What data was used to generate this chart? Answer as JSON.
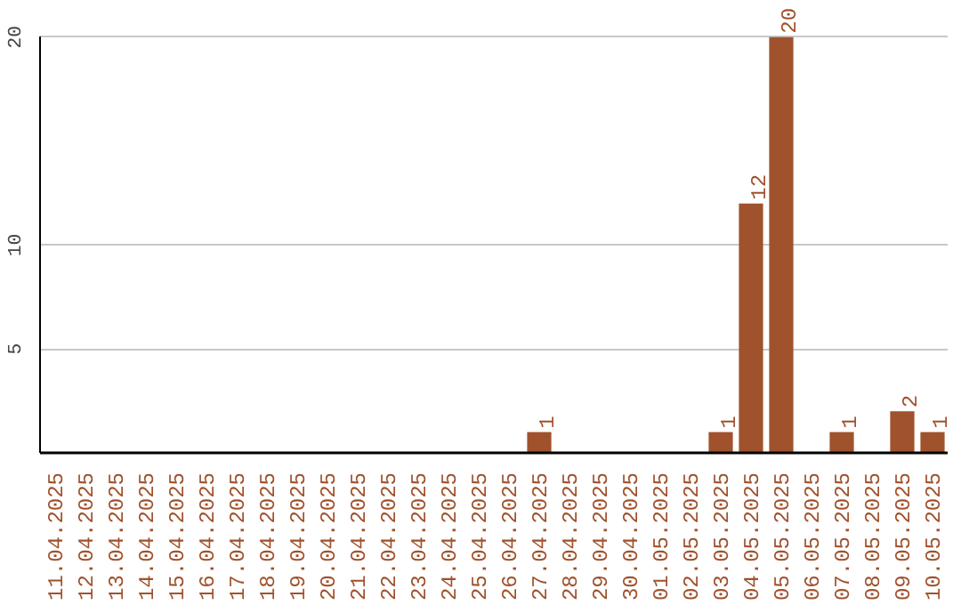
{
  "chart_data": {
    "type": "bar",
    "categories": [
      "11.04.2025",
      "12.04.2025",
      "13.04.2025",
      "14.04.2025",
      "15.04.2025",
      "16.04.2025",
      "17.04.2025",
      "18.04.2025",
      "19.04.2025",
      "20.04.2025",
      "21.04.2025",
      "22.04.2025",
      "23.04.2025",
      "24.04.2025",
      "25.04.2025",
      "26.04.2025",
      "27.04.2025",
      "28.04.2025",
      "29.04.2025",
      "30.04.2025",
      "01.05.2025",
      "02.05.2025",
      "03.05.2025",
      "04.05.2025",
      "05.05.2025",
      "06.05.2025",
      "07.05.2025",
      "08.05.2025",
      "09.05.2025",
      "10.05.2025"
    ],
    "values": [
      0,
      0,
      0,
      0,
      0,
      0,
      0,
      0,
      0,
      0,
      0,
      0,
      0,
      0,
      0,
      0,
      1,
      0,
      0,
      0,
      0,
      0,
      1,
      12,
      20,
      0,
      1,
      0,
      2,
      1
    ],
    "value_labels": [
      null,
      null,
      null,
      null,
      null,
      null,
      null,
      null,
      null,
      null,
      null,
      null,
      null,
      null,
      null,
      null,
      "1",
      null,
      null,
      null,
      null,
      null,
      "1",
      "12",
      "20",
      null,
      "1",
      null,
      "2",
      "1"
    ],
    "color": "#a0522d",
    "ylim": [
      0,
      20
    ],
    "yticks": [
      5,
      10,
      20
    ],
    "grid": "y"
  }
}
